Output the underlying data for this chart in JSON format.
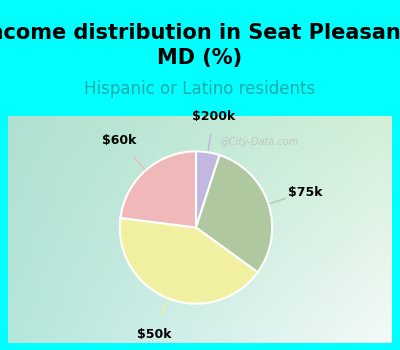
{
  "title": "Income distribution in Seat Pleasant,\nMD (%)",
  "subtitle": "Hispanic or Latino residents",
  "slices": [
    {
      "label": "$200k",
      "value": 5,
      "color": "#c0b8e0"
    },
    {
      "label": "$75k",
      "value": 30,
      "color": "#b0c8a0"
    },
    {
      "label": "$50k",
      "value": 42,
      "color": "#f0f0a0"
    },
    {
      "label": "$60k",
      "value": 23,
      "color": "#f0b8b8"
    }
  ],
  "bg_top": "#00ffff",
  "title_fontsize": 15,
  "subtitle_fontsize": 12,
  "subtitle_color": "#22aaaa",
  "label_fontsize": 9,
  "watermark": "@City-Data.com",
  "watermark_color": "#bbbbbb",
  "chart_bg_colors": [
    "#e8f5e8",
    "#c8e8d8",
    "#b8e0d0"
  ],
  "border_color": "#00ffff",
  "border_width": 6
}
